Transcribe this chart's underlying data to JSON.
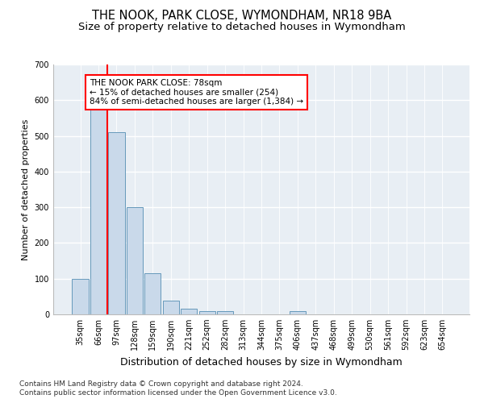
{
  "title": "THE NOOK, PARK CLOSE, WYMONDHAM, NR18 9BA",
  "subtitle": "Size of property relative to detached houses in Wymondham",
  "xlabel": "Distribution of detached houses by size in Wymondham",
  "ylabel": "Number of detached properties",
  "footer1": "Contains HM Land Registry data © Crown copyright and database right 2024.",
  "footer2": "Contains public sector information licensed under the Open Government Licence v3.0.",
  "categories": [
    "35sqm",
    "66sqm",
    "97sqm",
    "128sqm",
    "159sqm",
    "190sqm",
    "221sqm",
    "252sqm",
    "282sqm",
    "313sqm",
    "344sqm",
    "375sqm",
    "406sqm",
    "437sqm",
    "468sqm",
    "499sqm",
    "530sqm",
    "561sqm",
    "592sqm",
    "623sqm",
    "654sqm"
  ],
  "values": [
    100,
    578,
    510,
    300,
    115,
    38,
    15,
    10,
    8,
    0,
    0,
    0,
    8,
    0,
    0,
    0,
    0,
    0,
    0,
    0,
    0
  ],
  "bar_color": "#c9d9ea",
  "bar_edge_color": "#6699bb",
  "vline_x": 1.5,
  "vline_color": "red",
  "annotation_title": "THE NOOK PARK CLOSE: 78sqm",
  "annotation_line1": "← 15% of detached houses are smaller (254)",
  "annotation_line2": "84% of semi-detached houses are larger (1,384) →",
  "annotation_box_facecolor": "white",
  "annotation_box_edgecolor": "red",
  "ylim": [
    0,
    700
  ],
  "yticks": [
    0,
    100,
    200,
    300,
    400,
    500,
    600,
    700
  ],
  "bg_color": "#e8eef4",
  "fig_color": "#ffffff",
  "title_fontsize": 10.5,
  "subtitle_fontsize": 9.5,
  "xlabel_fontsize": 9,
  "ylabel_fontsize": 8,
  "tick_fontsize": 7,
  "annotation_fontsize": 7.5,
  "footer_fontsize": 6.5
}
